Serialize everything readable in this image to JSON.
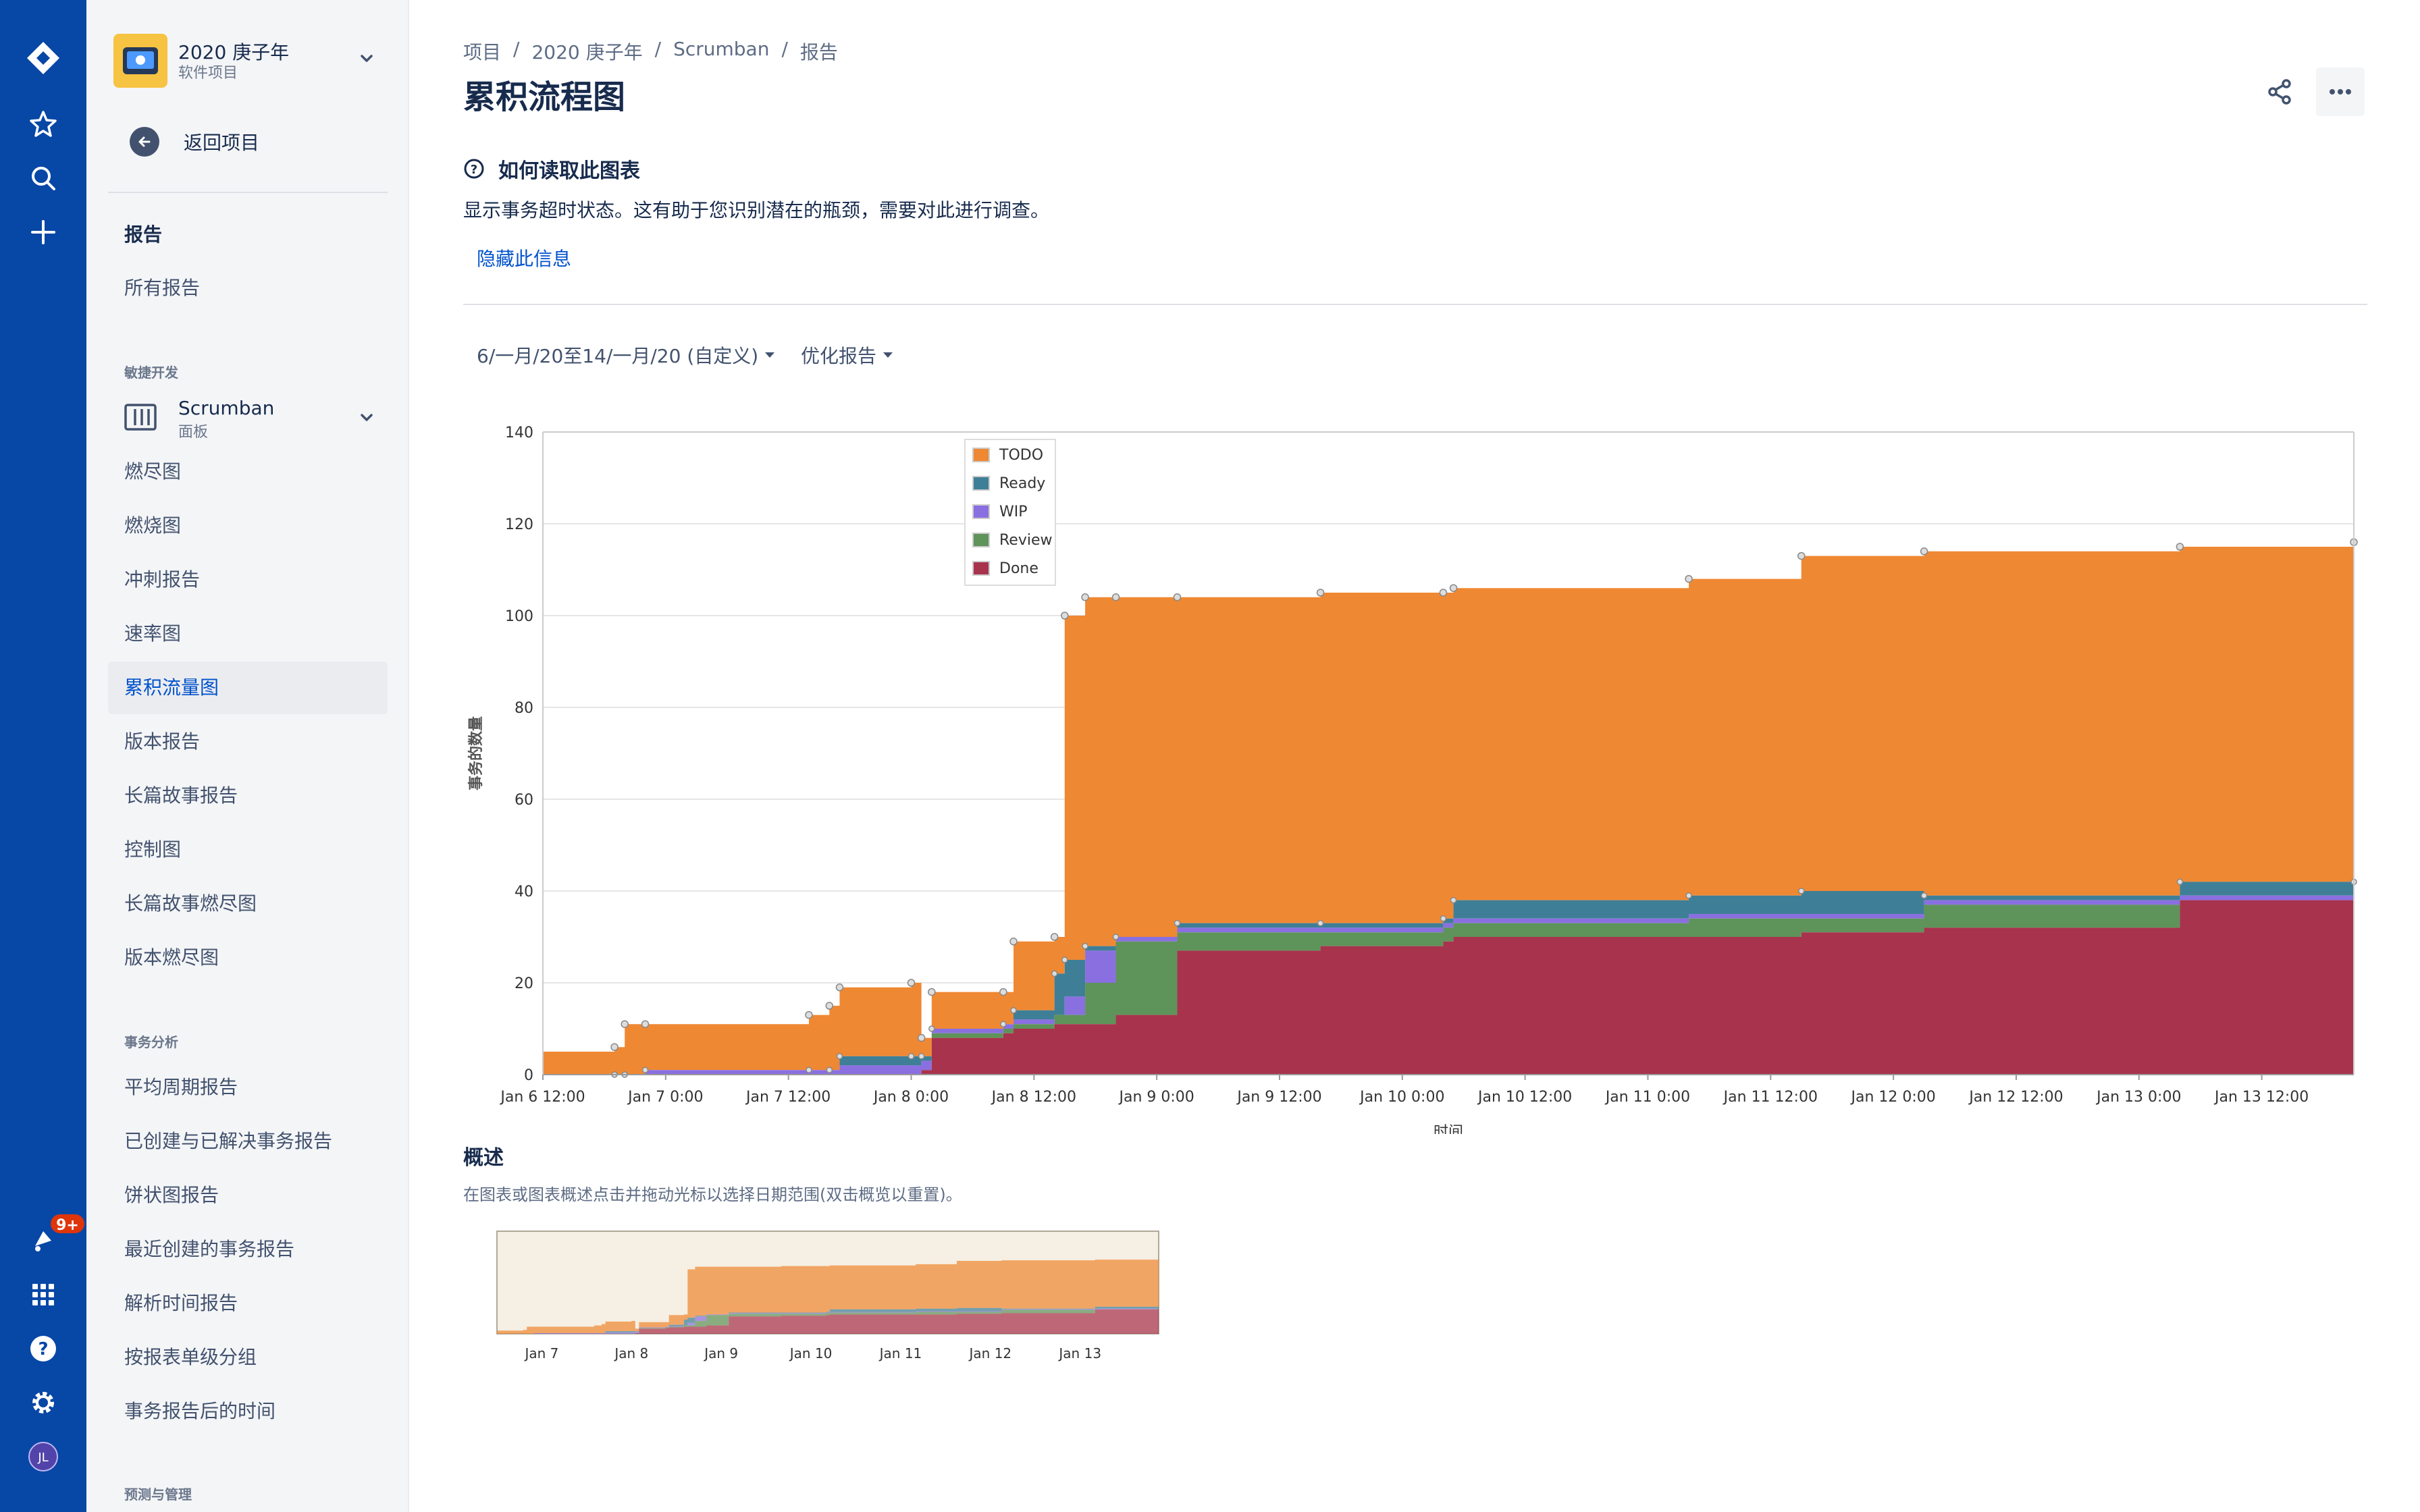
{
  "rail": {
    "notification_badge": "9+",
    "avatar_initials": "JL",
    "icons": [
      "jira-logo-icon",
      "star-icon",
      "search-icon",
      "plus-icon",
      "notification-icon",
      "app-switcher-icon",
      "help-icon",
      "settings-icon"
    ]
  },
  "sidebar": {
    "project_name": "2020 庚子年",
    "project_type": "软件项目",
    "back_label": "返回项目",
    "reports_heading": "报告",
    "all_reports": "所有报告",
    "agile_group": "敏捷开发",
    "board_name": "Scrumban",
    "board_type": "面板",
    "agile_items": [
      "燃尽图",
      "燃烧图",
      "冲刺报告",
      "速率图",
      "累积流量图",
      "版本报告",
      "长篇故事报告",
      "控制图",
      "长篇故事燃尽图",
      "版本燃尽图"
    ],
    "active_item": "累积流量图",
    "issue_group": "事务分析",
    "issue_items": [
      "平均周期报告",
      "已创建与已解决事务报告",
      "饼状图报告",
      "最近创建的事务报告",
      "解析时间报告",
      "按报表单级分组",
      "事务报告后的时间"
    ],
    "forecast_group": "预测与管理"
  },
  "breadcrumb": [
    "项目",
    "2020 庚子年",
    "Scrumban",
    "报告"
  ],
  "page_title": "累积流程图",
  "help": {
    "title": "如何读取此图表",
    "description": "显示事务超时状态。这有助于您识别潜在的瓶颈，需要对此进行调查。",
    "hide_link": "隐藏此信息"
  },
  "filters": {
    "date_range": "6/一月/20至14/一月/20 (自定义)",
    "refine": "优化报告"
  },
  "chart_data": {
    "type": "area",
    "stacked": true,
    "xlabel": "时间",
    "ylabel": "事务的数量",
    "ylim": [
      0,
      140
    ],
    "yticks": [
      0,
      20,
      40,
      60,
      80,
      100,
      120,
      140
    ],
    "xlim_hours": [
      0,
      177
    ],
    "xtick_labels": [
      "Jan 6 12:00",
      "Jan 7 0:00",
      "Jan 7 12:00",
      "Jan 8 0:00",
      "Jan 8 12:00",
      "Jan 9 0:00",
      "Jan 9 12:00",
      "Jan 10 0:00",
      "Jan 10 12:00",
      "Jan 11 0:00",
      "Jan 11 12:00",
      "Jan 12 0:00",
      "Jan 12 12:00",
      "Jan 13 0:00",
      "Jan 13 12:00"
    ],
    "legend_position": "top-left",
    "series": [
      {
        "name": "TODO",
        "color": "#ef8833"
      },
      {
        "name": "Ready",
        "color": "#3e7f97"
      },
      {
        "name": "WIP",
        "color": "#8a6fe0"
      },
      {
        "name": "Review",
        "color": "#5e935a"
      },
      {
        "name": "Done",
        "color": "#a8334d"
      }
    ],
    "points": [
      {
        "t": 0,
        "done": 0,
        "review": 0,
        "wip": 0,
        "ready": 0,
        "total": 5
      },
      {
        "t": 7,
        "done": 0,
        "review": 0,
        "wip": 0,
        "ready": 0,
        "total": 6
      },
      {
        "t": 8,
        "done": 0,
        "review": 0,
        "wip": 0,
        "ready": 0,
        "total": 11
      },
      {
        "t": 10,
        "done": 0,
        "review": 0,
        "wip": 1,
        "ready": 0,
        "total": 11
      },
      {
        "t": 26,
        "done": 0,
        "review": 0,
        "wip": 1,
        "ready": 0,
        "total": 13
      },
      {
        "t": 28,
        "done": 0,
        "review": 0,
        "wip": 1,
        "ready": 0,
        "total": 15
      },
      {
        "t": 29,
        "done": 0,
        "review": 0,
        "wip": 2,
        "ready": 2,
        "total": 19
      },
      {
        "t": 36,
        "done": 0,
        "review": 0,
        "wip": 2,
        "ready": 2,
        "total": 20
      },
      {
        "t": 37,
        "done": 1,
        "review": 0,
        "wip": 2,
        "ready": 1,
        "total": 8
      },
      {
        "t": 38,
        "done": 8,
        "review": 1,
        "wip": 1,
        "ready": 0,
        "total": 18
      },
      {
        "t": 45,
        "done": 9,
        "review": 1,
        "wip": 1,
        "ready": 0,
        "total": 18
      },
      {
        "t": 46,
        "done": 10,
        "review": 1,
        "wip": 1,
        "ready": 2,
        "total": 29
      },
      {
        "t": 50,
        "done": 11,
        "review": 2,
        "wip": 0,
        "ready": 9,
        "total": 30
      },
      {
        "t": 51,
        "done": 11,
        "review": 2,
        "wip": 4,
        "ready": 8,
        "total": 100
      },
      {
        "t": 53,
        "done": 11,
        "review": 9,
        "wip": 7,
        "ready": 1,
        "total": 104
      },
      {
        "t": 56,
        "done": 13,
        "review": 16,
        "wip": 1,
        "ready": 0,
        "total": 104
      },
      {
        "t": 62,
        "done": 27,
        "review": 4,
        "wip": 1,
        "ready": 1,
        "total": 104
      },
      {
        "t": 76,
        "done": 28,
        "review": 3,
        "wip": 1,
        "ready": 1,
        "total": 105
      },
      {
        "t": 88,
        "done": 29,
        "review": 3,
        "wip": 1,
        "ready": 1,
        "total": 105
      },
      {
        "t": 89,
        "done": 30,
        "review": 3,
        "wip": 1,
        "ready": 4,
        "total": 106
      },
      {
        "t": 112,
        "done": 30,
        "review": 4,
        "wip": 1,
        "ready": 4,
        "total": 108
      },
      {
        "t": 123,
        "done": 31,
        "review": 3,
        "wip": 1,
        "ready": 5,
        "total": 113
      },
      {
        "t": 135,
        "done": 32,
        "review": 5,
        "wip": 1,
        "ready": 1,
        "total": 114
      },
      {
        "t": 160,
        "done": 38,
        "review": 0,
        "wip": 1,
        "ready": 3,
        "total": 115
      },
      {
        "t": 177,
        "done": 38,
        "review": 0,
        "wip": 2,
        "ready": 2,
        "total": 116
      }
    ]
  },
  "overview": {
    "title": "概述",
    "description": "在图表或图表概述点击并拖动光标以选择日期范围(双击概览以重置)。",
    "tick_labels": [
      "Jan 7",
      "Jan 8",
      "Jan 9",
      "Jan 10",
      "Jan 11",
      "Jan 12",
      "Jan 13"
    ]
  }
}
